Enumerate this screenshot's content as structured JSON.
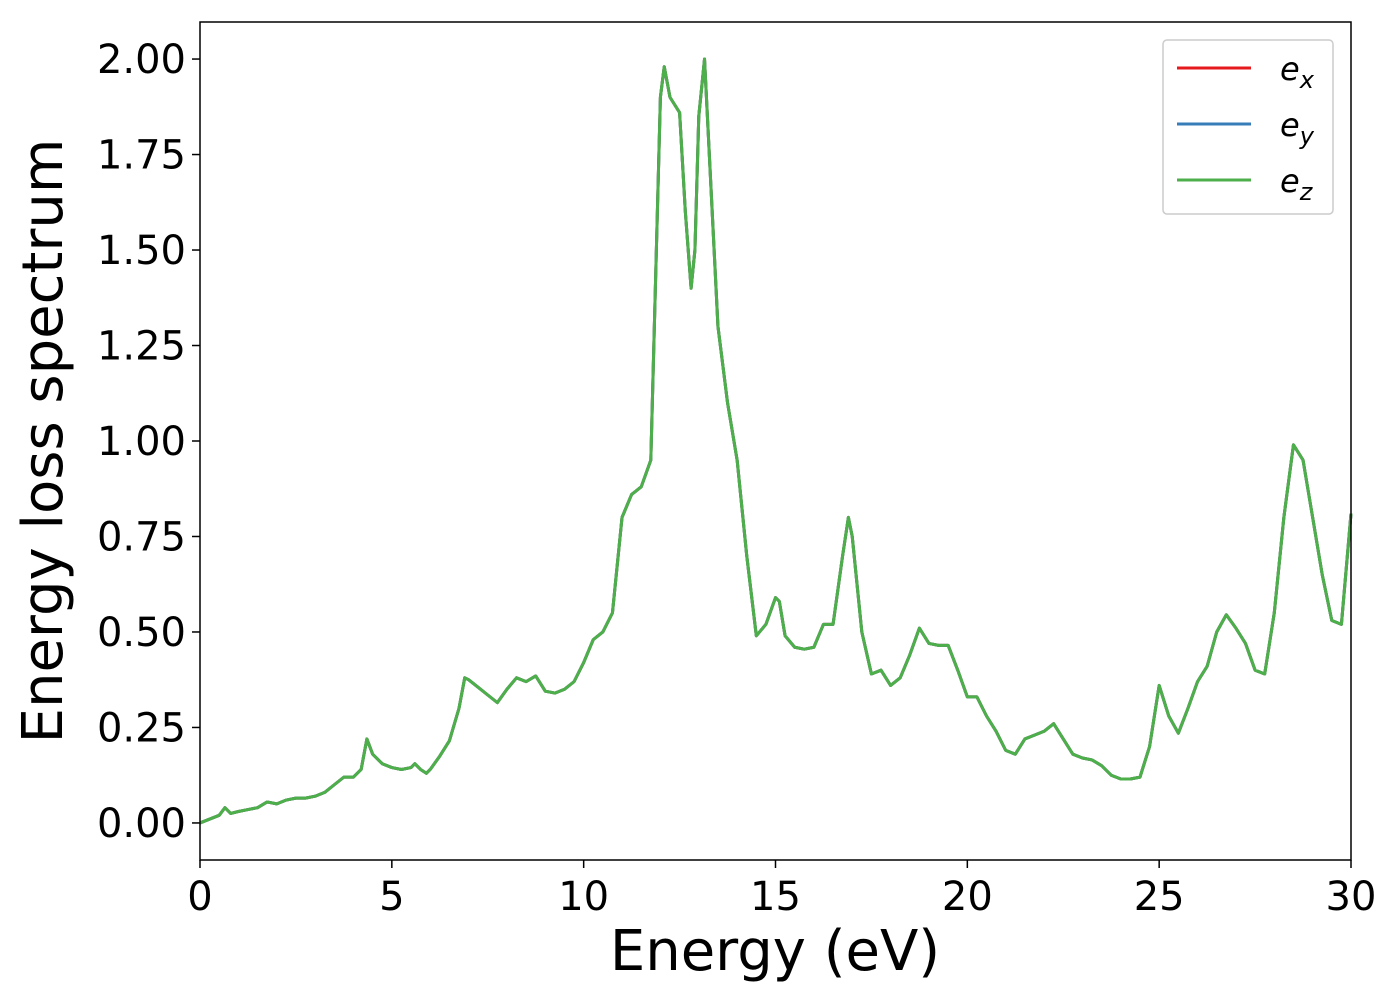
{
  "chart_data": {
    "type": "line",
    "xlabel": "Energy (eV)",
    "ylabel": "Energy loss spectrum",
    "x": [
      0,
      0.5,
      0.65,
      0.8,
      1.0,
      1.25,
      1.5,
      1.75,
      2.0,
      2.25,
      2.5,
      2.75,
      3.0,
      3.25,
      3.5,
      3.75,
      4.0,
      4.2,
      4.35,
      4.5,
      4.75,
      5.0,
      5.25,
      5.5,
      5.6,
      5.75,
      5.9,
      6.0,
      6.25,
      6.5,
      6.75,
      6.9,
      7.0,
      7.25,
      7.5,
      7.75,
      8.0,
      8.25,
      8.5,
      8.75,
      9.0,
      9.25,
      9.5,
      9.75,
      10.0,
      10.25,
      10.5,
      10.75,
      11.0,
      11.25,
      11.5,
      11.75,
      12.0,
      12.1,
      12.25,
      12.5,
      12.65,
      12.8,
      12.9,
      13.0,
      13.15,
      13.25,
      13.5,
      13.75,
      14.0,
      14.25,
      14.5,
      14.75,
      15.0,
      15.1,
      15.25,
      15.5,
      15.75,
      16.0,
      16.25,
      16.5,
      16.75,
      16.9,
      17.0,
      17.25,
      17.5,
      17.75,
      18.0,
      18.25,
      18.5,
      18.75,
      19.0,
      19.25,
      19.5,
      19.75,
      20.0,
      20.25,
      20.5,
      20.75,
      21.0,
      21.25,
      21.5,
      21.75,
      22.0,
      22.25,
      22.5,
      22.75,
      23.0,
      23.25,
      23.5,
      23.75,
      24.0,
      24.25,
      24.5,
      24.75,
      25.0,
      25.25,
      25.5,
      25.75,
      26.0,
      26.25,
      26.5,
      26.75,
      27.0,
      27.25,
      27.5,
      27.75,
      28.0,
      28.25,
      28.5,
      28.75,
      29.0,
      29.25,
      29.5,
      29.75,
      30.0
    ],
    "series": [
      {
        "name": "e_x",
        "color": "#e41a1c",
        "values": [
          0.0,
          0.02,
          0.04,
          0.025,
          0.03,
          0.035,
          0.04,
          0.055,
          0.05,
          0.06,
          0.065,
          0.065,
          0.07,
          0.08,
          0.1,
          0.12,
          0.12,
          0.14,
          0.22,
          0.18,
          0.155,
          0.145,
          0.14,
          0.145,
          0.155,
          0.14,
          0.13,
          0.14,
          0.175,
          0.215,
          0.3,
          0.38,
          0.375,
          0.355,
          0.335,
          0.315,
          0.35,
          0.38,
          0.37,
          0.385,
          0.345,
          0.34,
          0.35,
          0.37,
          0.42,
          0.48,
          0.5,
          0.55,
          0.8,
          0.86,
          0.88,
          0.95,
          1.9,
          1.98,
          1.9,
          1.86,
          1.6,
          1.4,
          1.5,
          1.85,
          2.0,
          1.8,
          1.3,
          1.1,
          0.95,
          0.7,
          0.49,
          0.52,
          0.59,
          0.58,
          0.49,
          0.46,
          0.455,
          0.46,
          0.52,
          0.52,
          0.7,
          0.8,
          0.75,
          0.5,
          0.39,
          0.4,
          0.36,
          0.38,
          0.44,
          0.51,
          0.47,
          0.465,
          0.465,
          0.4,
          0.33,
          0.33,
          0.28,
          0.24,
          0.19,
          0.18,
          0.22,
          0.23,
          0.24,
          0.26,
          0.22,
          0.18,
          0.17,
          0.165,
          0.15,
          0.125,
          0.115,
          0.115,
          0.12,
          0.2,
          0.36,
          0.28,
          0.235,
          0.3,
          0.37,
          0.41,
          0.5,
          0.545,
          0.51,
          0.47,
          0.4,
          0.39,
          0.55,
          0.8,
          0.99,
          0.95,
          0.8,
          0.65,
          0.53,
          0.52,
          0.81
        ]
      },
      {
        "name": "e_y",
        "color": "#377eb8",
        "values": [
          0.0,
          0.02,
          0.04,
          0.025,
          0.03,
          0.035,
          0.04,
          0.055,
          0.05,
          0.06,
          0.065,
          0.065,
          0.07,
          0.08,
          0.1,
          0.12,
          0.12,
          0.14,
          0.22,
          0.18,
          0.155,
          0.145,
          0.14,
          0.145,
          0.155,
          0.14,
          0.13,
          0.14,
          0.175,
          0.215,
          0.3,
          0.38,
          0.375,
          0.355,
          0.335,
          0.315,
          0.35,
          0.38,
          0.37,
          0.385,
          0.345,
          0.34,
          0.35,
          0.37,
          0.42,
          0.48,
          0.5,
          0.55,
          0.8,
          0.86,
          0.88,
          0.95,
          1.9,
          1.98,
          1.9,
          1.86,
          1.6,
          1.4,
          1.5,
          1.85,
          2.0,
          1.8,
          1.3,
          1.1,
          0.95,
          0.7,
          0.49,
          0.52,
          0.59,
          0.58,
          0.49,
          0.46,
          0.455,
          0.46,
          0.52,
          0.52,
          0.7,
          0.8,
          0.75,
          0.5,
          0.39,
          0.4,
          0.36,
          0.38,
          0.44,
          0.51,
          0.47,
          0.465,
          0.465,
          0.4,
          0.33,
          0.33,
          0.28,
          0.24,
          0.19,
          0.18,
          0.22,
          0.23,
          0.24,
          0.26,
          0.22,
          0.18,
          0.17,
          0.165,
          0.15,
          0.125,
          0.115,
          0.115,
          0.12,
          0.2,
          0.36,
          0.28,
          0.235,
          0.3,
          0.37,
          0.41,
          0.5,
          0.545,
          0.51,
          0.47,
          0.4,
          0.39,
          0.55,
          0.8,
          0.99,
          0.95,
          0.8,
          0.65,
          0.53,
          0.52,
          0.81
        ]
      },
      {
        "name": "e_z",
        "color": "#4daf4a",
        "values": [
          0.0,
          0.02,
          0.04,
          0.025,
          0.03,
          0.035,
          0.04,
          0.055,
          0.05,
          0.06,
          0.065,
          0.065,
          0.07,
          0.08,
          0.1,
          0.12,
          0.12,
          0.14,
          0.22,
          0.18,
          0.155,
          0.145,
          0.14,
          0.145,
          0.155,
          0.14,
          0.13,
          0.14,
          0.175,
          0.215,
          0.3,
          0.38,
          0.375,
          0.355,
          0.335,
          0.315,
          0.35,
          0.38,
          0.37,
          0.385,
          0.345,
          0.34,
          0.35,
          0.37,
          0.42,
          0.48,
          0.5,
          0.55,
          0.8,
          0.86,
          0.88,
          0.95,
          1.9,
          1.98,
          1.9,
          1.86,
          1.6,
          1.4,
          1.5,
          1.85,
          2.0,
          1.8,
          1.3,
          1.1,
          0.95,
          0.7,
          0.49,
          0.52,
          0.59,
          0.58,
          0.49,
          0.46,
          0.455,
          0.46,
          0.52,
          0.52,
          0.7,
          0.8,
          0.75,
          0.5,
          0.39,
          0.4,
          0.36,
          0.38,
          0.44,
          0.51,
          0.47,
          0.465,
          0.465,
          0.4,
          0.33,
          0.33,
          0.28,
          0.24,
          0.19,
          0.18,
          0.22,
          0.23,
          0.24,
          0.26,
          0.22,
          0.18,
          0.17,
          0.165,
          0.15,
          0.125,
          0.115,
          0.115,
          0.12,
          0.2,
          0.36,
          0.28,
          0.235,
          0.3,
          0.37,
          0.41,
          0.5,
          0.545,
          0.51,
          0.47,
          0.4,
          0.39,
          0.55,
          0.8,
          0.99,
          0.95,
          0.8,
          0.65,
          0.53,
          0.52,
          0.81
        ]
      }
    ],
    "xlim": [
      0,
      30
    ],
    "xticks": [
      0,
      5,
      10,
      15,
      20,
      25,
      30
    ],
    "ylim": [
      -0.097,
      2.097
    ],
    "yticks": [
      {
        "value": 0,
        "label": "0.00"
      },
      {
        "value": 0.25,
        "label": "0.25"
      },
      {
        "value": 0.5,
        "label": "0.50"
      },
      {
        "value": 0.75,
        "label": "0.75"
      },
      {
        "value": 1,
        "label": "1.00"
      },
      {
        "value": 1.25,
        "label": "1.25"
      },
      {
        "value": 1.5,
        "label": "1.50"
      },
      {
        "value": 1.75,
        "label": "1.75"
      },
      {
        "value": 2,
        "label": "2.00"
      }
    ],
    "legend": "upper right",
    "grid": false
  }
}
